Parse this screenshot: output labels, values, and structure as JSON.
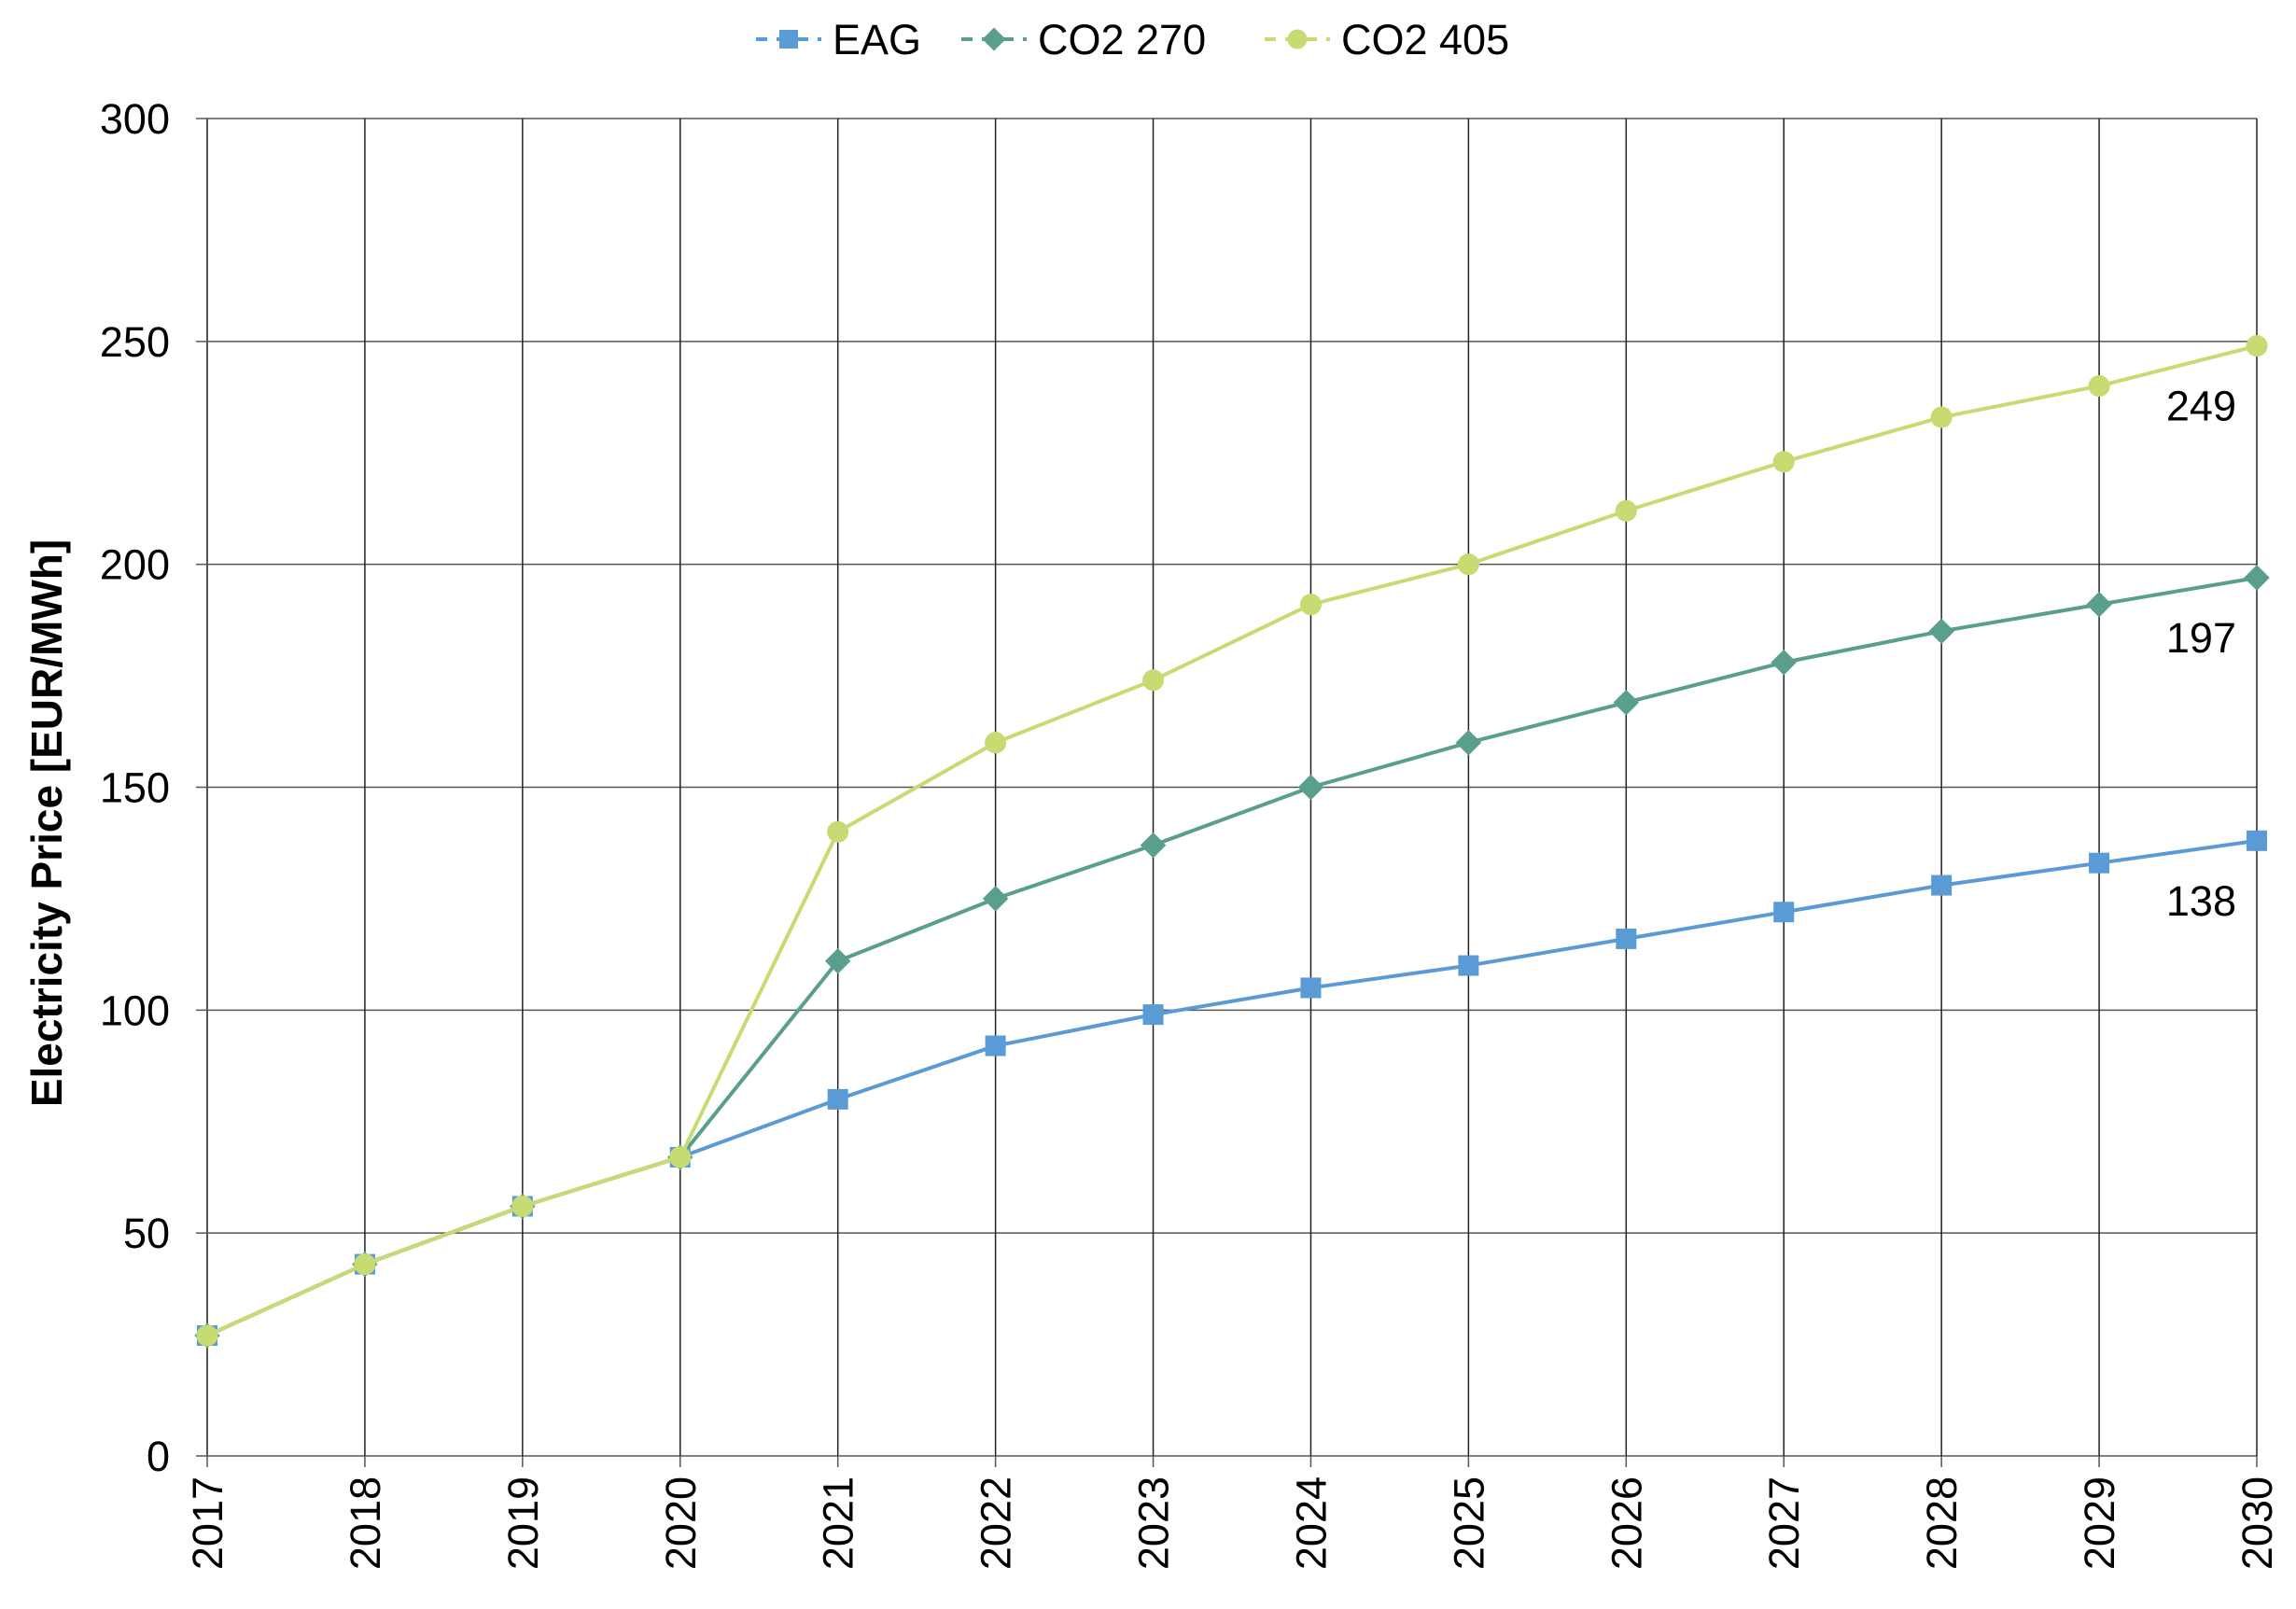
{
  "chart_data": {
    "type": "line",
    "title": "",
    "xlabel": "",
    "ylabel": "Electricity Price [EUR/MWh]",
    "ylim": [
      0,
      300
    ],
    "yticks": [
      0,
      50,
      100,
      150,
      200,
      250,
      300
    ],
    "categories": [
      "2017",
      "2018",
      "2019",
      "2020",
      "2021",
      "2022",
      "2023",
      "2024",
      "2025",
      "2026",
      "2027",
      "2028",
      "2029",
      "2030"
    ],
    "grid": true,
    "legend_position": "top-center",
    "series": [
      {
        "name": "EAG",
        "marker": "square",
        "color": "#5b9bd5",
        "values": [
          27,
          43,
          56,
          67,
          80,
          92,
          99,
          105,
          110,
          116,
          122,
          128,
          133,
          138
        ]
      },
      {
        "name": "CO2 270",
        "marker": "diamond",
        "color": "#5a9e8e",
        "values": [
          27,
          43,
          56,
          67,
          111,
          125,
          137,
          150,
          160,
          169,
          178,
          185,
          191,
          197
        ]
      },
      {
        "name": "CO2 405",
        "marker": "circle",
        "color": "#c6dc72",
        "values": [
          27,
          43,
          56,
          67,
          140,
          160,
          174,
          191,
          200,
          212,
          223,
          233,
          240,
          249
        ]
      }
    ],
    "end_labels": [
      {
        "series": "CO2 405",
        "text": "249"
      },
      {
        "series": "CO2 270",
        "text": "197"
      },
      {
        "series": "EAG",
        "text": "138"
      }
    ]
  }
}
